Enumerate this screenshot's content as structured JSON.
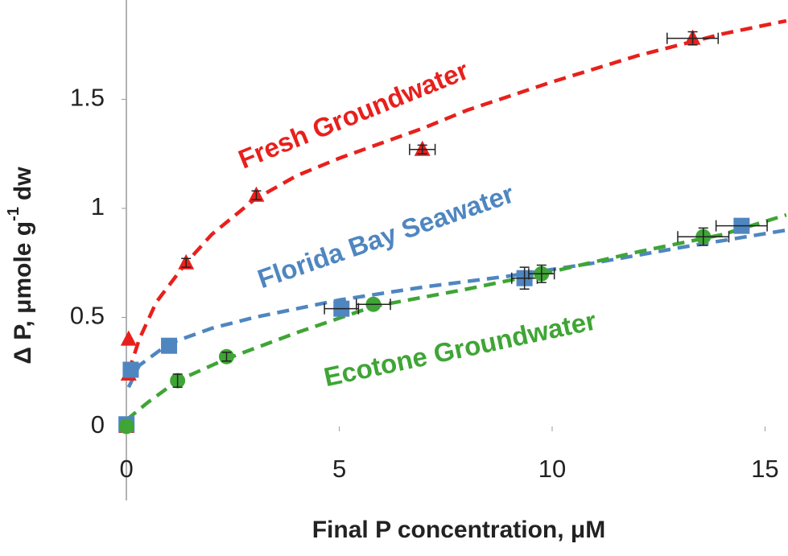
{
  "chart_data": {
    "type": "scatter",
    "x_label": "Final P concentration, μM",
    "y_label": {
      "text": "Δ P, μmole g",
      "superscript": "-1",
      "suffix": "dw"
    },
    "xlim": [
      -0.4,
      15.54
    ],
    "ylim": [
      0,
      1.95
    ],
    "xticks": [
      0,
      5,
      10,
      15
    ],
    "yticks": [
      0,
      0.5,
      1,
      1.5
    ],
    "series": [
      {
        "name": "Fresh Groundwater",
        "color": "#e8201c",
        "marker": "triangle",
        "x": [
          0,
          0.05,
          0.05,
          1.4,
          3.05,
          6.95,
          13.3
        ],
        "values": [
          0,
          0.24,
          0.4,
          0.75,
          1.06,
          1.27,
          1.78
        ],
        "x_errors": [
          null,
          null,
          null,
          null,
          null,
          0.3,
          0.6
        ],
        "y_errors": [
          null,
          null,
          null,
          0.02,
          0.02,
          0.02,
          0.03
        ],
        "curve_x": [
          0.05,
          0.3,
          0.7,
          1.4,
          2,
          3,
          4,
          5,
          6,
          7,
          8,
          10,
          12,
          14,
          15.5
        ],
        "curve_y": [
          0.25,
          0.4,
          0.57,
          0.75,
          0.88,
          1.04,
          1.15,
          1.23,
          1.3,
          1.37,
          1.45,
          1.58,
          1.7,
          1.8,
          1.86
        ]
      },
      {
        "name": "Florida Bay Seawater",
        "color": "#4f86c0",
        "marker": "square",
        "x": [
          0,
          0.1,
          1.0,
          5.05,
          9.35,
          14.45
        ],
        "values": [
          0.01,
          0.26,
          0.37,
          0.54,
          0.68,
          0.92
        ],
        "x_errors": [
          null,
          null,
          null,
          0.4,
          0.3,
          0.6
        ],
        "y_errors": [
          null,
          null,
          null,
          null,
          0.05,
          null
        ],
        "curve_x": [
          0.05,
          0.3,
          1,
          2,
          3,
          5,
          7,
          9,
          11,
          13,
          15.5
        ],
        "curve_y": [
          0.18,
          0.28,
          0.38,
          0.45,
          0.5,
          0.58,
          0.64,
          0.69,
          0.75,
          0.82,
          0.9
        ]
      },
      {
        "name": "Ecotone Groundwater",
        "color": "#3fa535",
        "marker": "circle",
        "x": [
          0,
          1.2,
          2.35,
          5.8,
          9.75,
          13.55
        ],
        "values": [
          0,
          0.21,
          0.32,
          0.56,
          0.7,
          0.87
        ],
        "x_errors": [
          null,
          null,
          null,
          0.4,
          0.3,
          0.6
        ],
        "y_errors": [
          null,
          0.03,
          0.02,
          null,
          0.04,
          0.04
        ],
        "curve_x": [
          0,
          0.5,
          1.2,
          2.35,
          4,
          5.8,
          8,
          10,
          12,
          14,
          15.5
        ],
        "curve_y": [
          0.03,
          0.11,
          0.21,
          0.31,
          0.43,
          0.55,
          0.63,
          0.71,
          0.8,
          0.88,
          0.97
        ]
      }
    ]
  }
}
